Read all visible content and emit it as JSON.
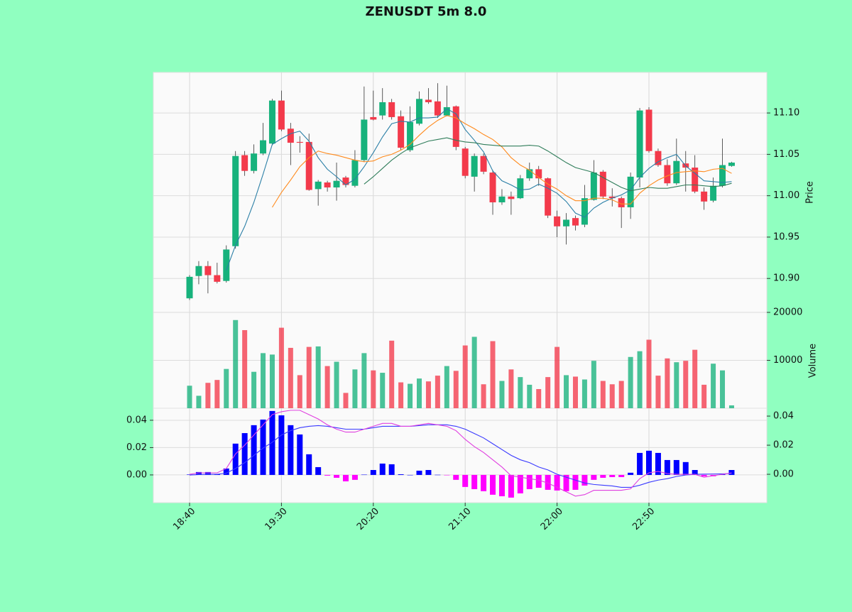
{
  "chart_data": [
    {
      "type": "candlestick",
      "title": "ZENUSDT 5m 8.0",
      "ylabel": "Price",
      "categories": [
        "18:40",
        null,
        null,
        null,
        null,
        null,
        null,
        null,
        null,
        null,
        "19:30",
        null,
        null,
        null,
        null,
        null,
        null,
        null,
        null,
        null,
        "20:20",
        null,
        null,
        null,
        null,
        null,
        null,
        null,
        null,
        null,
        "21:10",
        null,
        null,
        null,
        null,
        null,
        null,
        null,
        null,
        null,
        "22:00",
        null,
        null,
        null,
        null,
        null,
        null,
        null,
        null,
        null,
        "22:50",
        null,
        null,
        null,
        null,
        null,
        null,
        null,
        null,
        null
      ],
      "open": [
        10.876,
        10.903,
        10.915,
        10.904,
        10.897,
        10.939,
        11.049,
        11.03,
        11.051,
        11.063,
        11.115,
        11.081,
        11.065,
        11.065,
        11.008,
        11.016,
        11.01,
        11.022,
        11.012,
        11.043,
        11.095,
        11.097,
        11.113,
        11.096,
        11.055,
        11.087,
        11.116,
        11.114,
        11.097,
        11.108,
        11.057,
        11.023,
        11.048,
        11.028,
        10.992,
        10.999,
        10.997,
        11.021,
        11.032,
        11.021,
        10.975,
        10.963,
        10.973,
        10.965,
        10.995,
        11.029,
        10.999,
        10.997,
        10.986,
        11.022,
        11.104,
        11.054,
        11.037,
        11.015,
        11.039,
        11.034,
        11.005,
        10.994,
        11.012,
        11.036
      ],
      "high": [
        10.904,
        10.921,
        10.921,
        10.919,
        10.94,
        11.054,
        11.054,
        11.062,
        11.088,
        11.117,
        11.127,
        11.088,
        11.072,
        11.075,
        11.019,
        11.018,
        11.04,
        11.024,
        11.055,
        11.132,
        11.127,
        11.13,
        11.117,
        11.103,
        11.108,
        11.126,
        11.13,
        11.136,
        11.133,
        11.109,
        11.059,
        11.051,
        11.051,
        11.031,
        11.008,
        11.005,
        11.025,
        11.04,
        11.036,
        11.022,
        10.982,
        10.979,
        10.976,
        11.013,
        11.043,
        11.031,
        11.009,
        10.999,
        11.028,
        11.106,
        11.107,
        11.057,
        11.044,
        11.069,
        11.054,
        11.049,
        11.01,
        11.022,
        11.069,
        11.041
      ],
      "low": [
        10.874,
        10.893,
        10.882,
        10.894,
        10.895,
        10.936,
        11.024,
        11.027,
        11.049,
        11.061,
        11.078,
        11.037,
        11.052,
        11.006,
        10.988,
        11.005,
        10.994,
        11.01,
        11.01,
        11.041,
        11.091,
        11.092,
        11.092,
        11.055,
        11.053,
        11.085,
        11.111,
        11.094,
        11.096,
        11.055,
        11.021,
        11.005,
        11.026,
        10.977,
        10.989,
        10.977,
        10.996,
        11.018,
        11.012,
        10.973,
        10.95,
        10.941,
        10.958,
        10.962,
        10.994,
        10.996,
        10.987,
        10.961,
        10.972,
        11.01,
        11.052,
        11.035,
        11.012,
        11.013,
        11.005,
        11.003,
        10.983,
        10.992,
        11.01,
        11.035
      ],
      "close": [
        10.902,
        10.915,
        10.904,
        10.896,
        10.935,
        11.048,
        11.03,
        11.051,
        11.067,
        11.115,
        11.08,
        11.064,
        11.064,
        11.007,
        11.017,
        11.01,
        11.018,
        11.013,
        11.043,
        11.092,
        11.092,
        11.113,
        11.095,
        11.058,
        11.089,
        11.117,
        11.113,
        11.097,
        11.107,
        11.059,
        11.024,
        11.048,
        11.029,
        10.992,
        10.999,
        10.996,
        11.021,
        11.032,
        11.021,
        10.976,
        10.963,
        10.971,
        10.964,
        10.997,
        11.028,
        10.999,
        10.997,
        10.986,
        11.023,
        11.103,
        11.054,
        11.037,
        11.015,
        11.042,
        11.034,
        11.005,
        10.993,
        11.012,
        11.037,
        11.04
      ],
      "up_color": "#17b27c",
      "down_color": "#f33a4b",
      "series": [
        {
          "color": "#2b7fa6",
          "values": [
            null,
            null,
            null,
            null,
            10.91,
            10.94,
            10.963,
            10.992,
            11.026,
            11.062,
            11.069,
            11.075,
            11.078,
            11.066,
            11.046,
            11.032,
            11.023,
            11.013,
            11.02,
            11.035,
            11.052,
            11.071,
            11.087,
            11.09,
            11.089,
            11.094,
            11.094,
            11.095,
            11.105,
            11.099,
            11.08,
            11.067,
            11.053,
            11.03,
            11.018,
            11.013,
            11.007,
            11.008,
            11.014,
            11.009,
            11.003,
            10.993,
            10.979,
            10.974,
            10.985,
            10.992,
            10.997,
            11.001,
            11.007,
            11.022,
            11.033,
            11.041,
            11.046,
            11.05,
            11.036,
            11.027,
            11.018,
            11.017,
            11.016,
            11.017
          ]
        },
        {
          "color": "#ff8a1c",
          "values": [
            null,
            null,
            null,
            null,
            null,
            null,
            null,
            null,
            null,
            10.986,
            11.004,
            11.019,
            11.035,
            11.046,
            11.054,
            11.051,
            11.049,
            11.046,
            11.043,
            11.041,
            11.042,
            11.047,
            11.05,
            11.055,
            11.062,
            11.073,
            11.083,
            11.091,
            11.097,
            11.094,
            11.087,
            11.081,
            11.074,
            11.068,
            11.059,
            11.046,
            11.037,
            11.031,
            11.022,
            11.014,
            11.008,
            11.0,
            10.994,
            10.994,
            10.997,
            10.997,
            10.995,
            10.99,
            10.99,
            11.003,
            11.012,
            11.019,
            11.024,
            11.028,
            11.029,
            11.03,
            11.029,
            11.032,
            11.033,
            11.027
          ]
        },
        {
          "color": "#2f7d5a",
          "values": [
            null,
            null,
            null,
            null,
            null,
            null,
            null,
            null,
            null,
            null,
            null,
            null,
            null,
            null,
            null,
            null,
            null,
            null,
            null,
            11.014,
            11.023,
            11.033,
            11.043,
            11.051,
            11.058,
            11.062,
            11.066,
            11.068,
            11.07,
            11.067,
            11.065,
            11.064,
            11.062,
            11.061,
            11.06,
            11.06,
            11.06,
            11.061,
            11.06,
            11.054,
            11.047,
            11.04,
            11.034,
            11.031,
            11.028,
            11.022,
            11.016,
            11.01,
            11.006,
            11.008,
            11.01,
            11.009,
            11.009,
            11.011,
            11.013,
            11.013,
            11.012,
            11.011,
            11.012,
            11.015
          ]
        }
      ],
      "ylim": [
        10.859,
        11.149
      ],
      "yticks": [
        {
          "value": 10.9,
          "label": "10.90"
        },
        {
          "value": 10.95,
          "label": "10.95"
        },
        {
          "value": 11.0,
          "label": "11.00"
        },
        {
          "value": 11.05,
          "label": "11.05"
        },
        {
          "value": 11.1,
          "label": "11.10"
        }
      ],
      "grid": true
    },
    {
      "type": "bar",
      "ylabel": "Volume",
      "values": [
        4700,
        2600,
        5300,
        5900,
        8200,
        18400,
        16300,
        7600,
        11500,
        11200,
        16800,
        12600,
        6900,
        12800,
        12900,
        8800,
        9700,
        3200,
        8100,
        11500,
        7900,
        7400,
        14100,
        5400,
        5100,
        6200,
        5600,
        6800,
        8800,
        7800,
        13100,
        14900,
        5000,
        14000,
        5700,
        8100,
        6500,
        4900,
        4000,
        6500,
        12800,
        6900,
        6600,
        6000,
        9900,
        5700,
        5000,
        5700,
        10700,
        11900,
        14300,
        6800,
        10400,
        9600,
        9900,
        12200,
        4900,
        9300,
        7900,
        600
      ],
      "ylim": [
        0,
        20000
      ],
      "yticks": [
        10000,
        20000
      ],
      "grid": true
    },
    {
      "type": "macd",
      "values": [
        0.0003,
        0.0021,
        0.0021,
        0.0005,
        0.0047,
        0.0229,
        0.0306,
        0.0364,
        0.0405,
        0.0468,
        0.0436,
        0.0364,
        0.0296,
        0.0151,
        0.0057,
        -0.0005,
        -0.0021,
        -0.0047,
        -0.0036,
        0.0002,
        0.0036,
        0.0083,
        0.0078,
        0.0005,
        0,
        0.0031,
        0.0036,
        0.0001,
        -0.0002,
        -0.0036,
        -0.0088,
        -0.0104,
        -0.0119,
        -0.0145,
        -0.0156,
        -0.0166,
        -0.0135,
        -0.0104,
        -0.0094,
        -0.0109,
        -0.0114,
        -0.0119,
        -0.0109,
        -0.0078,
        -0.0036,
        -0.0021,
        -0.0016,
        -0.0016,
        0.0016,
        0.0161,
        0.0177,
        0.0161,
        0.0109,
        0.0109,
        0.0094,
        0.0036,
        -0.001,
        -0.001,
        0.001,
        0.0036
      ],
      "pos_color": "#0000ff",
      "neg_color": "#ff00ff",
      "series": [
        {
          "color": "#3a3aff",
          "axis": "y2",
          "values": [
            -0.0005,
            -0.0002,
            0,
            0,
            0.0008,
            0.004,
            0.008,
            0.013,
            0.018,
            0.022,
            0.027,
            0.03,
            0.032,
            0.033,
            0.0335,
            0.033,
            0.032,
            0.031,
            0.031,
            0.031,
            0.032,
            0.033,
            0.033,
            0.033,
            0.033,
            0.0335,
            0.034,
            0.034,
            0.034,
            0.033,
            0.031,
            0.028,
            0.025,
            0.021,
            0.017,
            0.013,
            0.01,
            0.008,
            0.005,
            0.003,
            0,
            -0.002,
            -0.004,
            -0.006,
            -0.007,
            -0.0075,
            -0.008,
            -0.009,
            -0.009,
            -0.0075,
            -0.0055,
            -0.004,
            -0.003,
            -0.0015,
            -0.0005,
            0,
            0.0001,
            0.0002,
            0.0003,
            0.0005
          ]
        },
        {
          "color": "#e040e0",
          "axis": "y2",
          "values": [
            0,
            0.001,
            0.001,
            0.001,
            0.004,
            0.014,
            0.02,
            0.027,
            0.034,
            0.041,
            0.043,
            0.044,
            0.044,
            0.041,
            0.038,
            0.034,
            0.031,
            0.029,
            0.029,
            0.031,
            0.033,
            0.035,
            0.035,
            0.033,
            0.033,
            0.034,
            0.035,
            0.034,
            0.033,
            0.03,
            0.024,
            0.019,
            0.015,
            0.01,
            0.005,
            -0.001,
            -0.002,
            -0.003,
            -0.004,
            -0.006,
            -0.009,
            -0.012,
            -0.015,
            -0.014,
            -0.011,
            -0.011,
            -0.011,
            -0.011,
            -0.01,
            -0.003,
            0.001,
            0.002,
            0.0005,
            0,
            0,
            0,
            -0.002,
            -0.001,
            0,
            0.001
          ]
        }
      ],
      "ylim": [
        -0.0203,
        0.0488
      ],
      "yticks": [
        {
          "value": 0,
          "label": "0.00"
        },
        0.02,
        0.04
      ],
      "y2lim": [
        -0.0195,
        0.0454
      ],
      "y2ticks": [
        {
          "value": 0,
          "label": "0.00"
        },
        0.02,
        0.04
      ],
      "grid": true
    }
  ]
}
